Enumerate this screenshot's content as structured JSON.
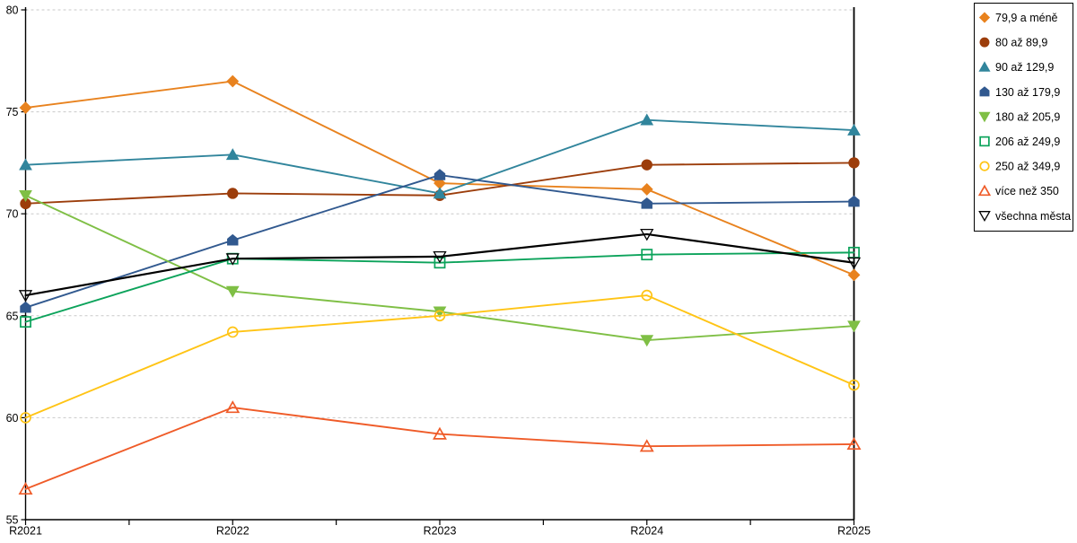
{
  "chart_data": {
    "type": "line",
    "title": "",
    "xlabel": "",
    "ylabel": "",
    "x_categories": [
      "R2021",
      "R2022",
      "R2023",
      "R2024",
      "R2025"
    ],
    "y_tick_labels": [
      "80",
      "75",
      "70",
      "65",
      "60",
      "55"
    ],
    "ylim": [
      55,
      80
    ],
    "y_tick_step": 5,
    "grid": "horizontal-dashed",
    "legend_position": "top-right-boxed",
    "series": [
      {
        "name": "79,9 a méně",
        "marker": "diamond-filled",
        "color": "#E8821E",
        "values": [
          75.2,
          76.5,
          71.5,
          71.2,
          67.0
        ]
      },
      {
        "name": "80 až 89,9",
        "marker": "circle-filled",
        "color": "#9C3D0B",
        "values": [
          70.5,
          71.0,
          70.9,
          72.4,
          72.5
        ]
      },
      {
        "name": "90 až 129,9",
        "marker": "triangle-up-filled",
        "color": "#31859C",
        "values": [
          72.4,
          72.9,
          71.0,
          74.6,
          74.1
        ]
      },
      {
        "name": "130 až 179,9",
        "marker": "pentagon-filled",
        "color": "#31598F",
        "values": [
          65.4,
          68.7,
          71.9,
          70.5,
          70.6
        ]
      },
      {
        "name": "180 až 205,9",
        "marker": "triangle-down-filled",
        "color": "#7FBF45",
        "values": [
          70.9,
          66.2,
          65.2,
          63.8,
          64.5
        ]
      },
      {
        "name": "206 až 249,9",
        "marker": "square-open",
        "color": "#0CA35B",
        "values": [
          64.7,
          67.8,
          67.6,
          68.0,
          68.1
        ]
      },
      {
        "name": "250 až 349,9",
        "marker": "circle-open",
        "color": "#FFC415",
        "values": [
          60.0,
          64.2,
          65.0,
          66.0,
          61.6
        ]
      },
      {
        "name": "více než 350",
        "marker": "triangle-up-open",
        "color": "#EF5B28",
        "values": [
          56.5,
          60.5,
          59.2,
          58.6,
          58.7
        ]
      },
      {
        "name": "všechna města",
        "marker": "triangle-down-open",
        "color": "#000000",
        "values": [
          66.0,
          67.8,
          67.9,
          69.0,
          67.6
        ]
      }
    ]
  },
  "colors": {
    "background": "#FFFFFF",
    "axis": "#000000",
    "gridline": "#C9C9C9",
    "legend_border": "#000000",
    "legend_background": "#FFFFFF"
  }
}
